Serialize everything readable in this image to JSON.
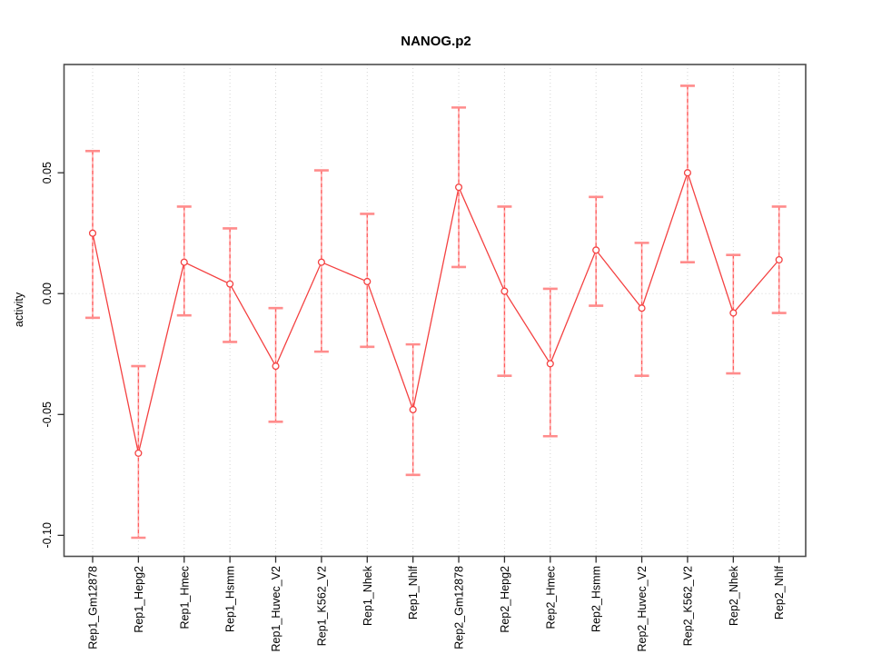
{
  "chart_data": {
    "type": "line",
    "title": "NANOG.p2",
    "ylabel": "activity",
    "xlabel": "",
    "legend": "none",
    "grid": "vertical dotted line per category, dotted horizontal line at y=0",
    "categories": [
      "Rep1_Gm12878",
      "Rep1_Hepg2",
      "Rep1_Hmec",
      "Rep1_Hsmm",
      "Rep1_Huvec_V2",
      "Rep1_K562_V2",
      "Rep1_Nhek",
      "Rep1_Nhlf",
      "Rep2_Gm12878",
      "Rep2_Hepg2",
      "Rep2_Hmec",
      "Rep2_Hsmm",
      "Rep2_Huvec_V2",
      "Rep2_K562_V2",
      "Rep2_Nhek",
      "Rep2_Nhlf"
    ],
    "series": [
      {
        "name": "activity",
        "marker": "open-circle",
        "values": [
          0.025,
          -0.066,
          0.013,
          0.004,
          -0.03,
          0.013,
          0.005,
          -0.048,
          0.044,
          0.001,
          -0.029,
          0.018,
          -0.006,
          0.05,
          -0.008,
          0.014
        ],
        "lower": [
          -0.01,
          -0.101,
          -0.009,
          -0.02,
          -0.053,
          -0.024,
          -0.022,
          -0.075,
          0.011,
          -0.034,
          -0.059,
          -0.005,
          -0.034,
          0.013,
          -0.033,
          -0.008
        ],
        "upper": [
          0.059,
          -0.03,
          0.036,
          0.027,
          -0.006,
          0.051,
          0.033,
          -0.021,
          0.077,
          0.036,
          0.002,
          0.04,
          0.021,
          0.086,
          0.016,
          0.036
        ]
      }
    ],
    "yticks": [
      {
        "value": 0.05,
        "label": "0.05"
      },
      {
        "value": 0.0,
        "label": "0.00"
      },
      {
        "value": -0.05,
        "label": "-0.05"
      },
      {
        "value": -0.1,
        "label": "-0.10"
      }
    ],
    "ylim": [
      -0.1087,
      0.0948
    ],
    "colors": {
      "line": "#f44141",
      "point": "#f44141",
      "errorbar_solid": "#ffb0b0",
      "errorbar_dash": "#ff5a5a",
      "errorbar_cap": "#ff8c8c",
      "grid": "#d4d4d4",
      "box": "#4d4d4d",
      "tick": "#2e2e2e",
      "text": "#000000",
      "background": "#ffffff"
    }
  }
}
